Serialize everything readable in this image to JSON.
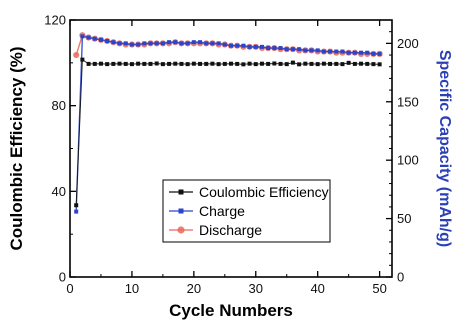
{
  "chart_data": {
    "type": "line",
    "xlabel": "Cycle Numbers",
    "ylabel_left": "Coulombic Efficiency (%)",
    "ylabel_right": "Specific Capacity (mAh/g)",
    "xlim": [
      0,
      52
    ],
    "ylim_left": [
      0,
      120
    ],
    "ylim_right": [
      0,
      220
    ],
    "x_ticks": [
      0,
      10,
      20,
      30,
      40,
      50
    ],
    "y_left_ticks": [
      0,
      40,
      80,
      120
    ],
    "y_right_ticks": [
      0,
      50,
      100,
      150,
      200
    ],
    "x_minor_step": 5,
    "y_left_minor_step": 20,
    "y_right_minor_step": 10,
    "legend_position": "lower-right",
    "series": [
      {
        "name": "Coulombic Efficiency",
        "axis": "left",
        "color": "#111111",
        "marker": "square",
        "x": [
          1,
          2,
          3,
          4,
          5,
          6,
          7,
          8,
          9,
          10,
          11,
          12,
          13,
          14,
          15,
          16,
          17,
          18,
          19,
          20,
          21,
          22,
          23,
          24,
          25,
          26,
          27,
          28,
          29,
          30,
          31,
          32,
          33,
          34,
          35,
          36,
          37,
          38,
          39,
          40,
          41,
          42,
          43,
          44,
          45,
          46,
          47,
          48,
          49,
          50
        ],
        "values": [
          33.5,
          101.5,
          99.5,
          99.5,
          99.6,
          99.4,
          99.5,
          99.6,
          99.5,
          99.4,
          99.6,
          99.5,
          99.5,
          99.7,
          99.4,
          99.5,
          99.6,
          99.5,
          99.4,
          99.6,
          99.5,
          99.5,
          99.6,
          99.4,
          99.5,
          99.6,
          99.5,
          99.3,
          99.6,
          99.4,
          99.6,
          99.5,
          99.7,
          99.5,
          99.4,
          100.1,
          99.3,
          99.6,
          99.5,
          99.4,
          99.6,
          99.5,
          99.5,
          99.4,
          100.0,
          99.5,
          99.6,
          99.5,
          99.4,
          99.3
        ]
      },
      {
        "name": "Charge",
        "axis": "right",
        "color": "#2b45c8",
        "marker": "square",
        "x": [
          1,
          2,
          3,
          4,
          5,
          6,
          7,
          8,
          9,
          10,
          11,
          12,
          13,
          14,
          15,
          16,
          17,
          18,
          19,
          20,
          21,
          22,
          23,
          24,
          25,
          26,
          27,
          28,
          29,
          30,
          31,
          32,
          33,
          34,
          35,
          36,
          37,
          38,
          39,
          40,
          41,
          42,
          43,
          44,
          45,
          46,
          47,
          48,
          49,
          50
        ],
        "values": [
          56,
          206,
          205,
          204,
          203,
          202,
          201,
          200,
          200,
          199,
          199,
          200,
          200,
          200,
          200,
          201,
          201,
          200,
          200,
          201,
          201,
          200,
          200,
          200,
          199,
          198,
          198,
          198,
          197,
          197,
          197,
          196,
          196,
          196,
          195,
          195,
          195,
          194,
          194,
          194,
          193,
          193,
          193,
          193,
          192,
          192,
          192,
          192,
          191,
          191
        ]
      },
      {
        "name": "Discharge",
        "axis": "right",
        "color": "#e86a5a",
        "marker": "circle",
        "x": [
          1,
          2,
          3,
          4,
          5,
          6,
          7,
          8,
          9,
          10,
          11,
          12,
          13,
          14,
          15,
          16,
          17,
          18,
          19,
          20,
          21,
          22,
          23,
          24,
          25,
          26,
          27,
          28,
          29,
          30,
          31,
          32,
          33,
          34,
          35,
          36,
          37,
          38,
          39,
          40,
          41,
          42,
          43,
          44,
          45,
          46,
          47,
          48,
          49,
          50
        ],
        "values": [
          190,
          207,
          205,
          204,
          203,
          202,
          201,
          200,
          199,
          199,
          199,
          199,
          200,
          200,
          200,
          200,
          201,
          200,
          200,
          200,
          200,
          200,
          200,
          199,
          199,
          198,
          198,
          197,
          197,
          197,
          196,
          196,
          196,
          195,
          195,
          195,
          194,
          194,
          194,
          193,
          193,
          193,
          192,
          192,
          192,
          192,
          191,
          191,
          191,
          191
        ]
      }
    ]
  }
}
